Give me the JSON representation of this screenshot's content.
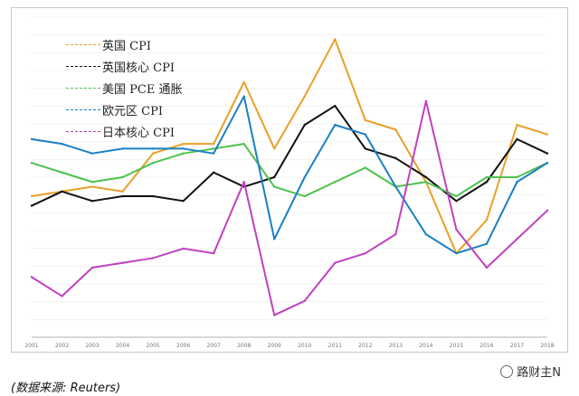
{
  "chart_data": {
    "type": "line",
    "legend_position": "top-left",
    "x": [
      "2001",
      "2002",
      "2003",
      "2004",
      "2005",
      "2006",
      "2007",
      "2008",
      "2009",
      "2010",
      "2011",
      "2012",
      "2013",
      "2014",
      "2015",
      "2016",
      "2017",
      "2018"
    ],
    "series": [
      {
        "name": "英国 CPI",
        "color": "#e8a028",
        "values": [
          1.2,
          1.3,
          1.4,
          1.3,
          2.1,
          2.3,
          2.3,
          3.6,
          2.2,
          3.3,
          4.5,
          2.8,
          2.6,
          1.5,
          0.0,
          0.7,
          2.7,
          2.5
        ]
      },
      {
        "name": "英国核心 CPI",
        "color": "#111111",
        "values": [
          1.0,
          1.3,
          1.1,
          1.2,
          1.2,
          1.1,
          1.7,
          1.4,
          1.6,
          2.7,
          3.1,
          2.2,
          2.0,
          1.6,
          1.1,
          1.5,
          2.4,
          2.1
        ]
      },
      {
        "name": "美国 PCE 通胀",
        "color": "#4dc24d",
        "values": [
          1.9,
          1.7,
          1.5,
          1.6,
          1.9,
          2.1,
          2.2,
          2.3,
          1.4,
          1.2,
          1.5,
          1.8,
          1.4,
          1.5,
          1.2,
          1.6,
          1.6,
          1.9
        ]
      },
      {
        "name": "欧元区 CPI",
        "color": "#1a7fc4",
        "values": [
          2.4,
          2.3,
          2.1,
          2.2,
          2.2,
          2.2,
          2.1,
          3.3,
          0.3,
          1.6,
          2.7,
          2.5,
          1.4,
          0.4,
          0.0,
          0.2,
          1.5,
          1.9
        ]
      },
      {
        "name": "日本核心 CPI",
        "color": "#c040c0",
        "values": [
          -0.5,
          -0.9,
          -0.3,
          -0.2,
          -0.1,
          0.1,
          0.0,
          1.5,
          -1.3,
          -1.0,
          -0.2,
          0.0,
          0.4,
          3.2,
          0.5,
          -0.3,
          0.3,
          0.9
        ]
      }
    ]
  },
  "source_text": "(数据来源: Reuters)",
  "watermark_text": "路财主N"
}
